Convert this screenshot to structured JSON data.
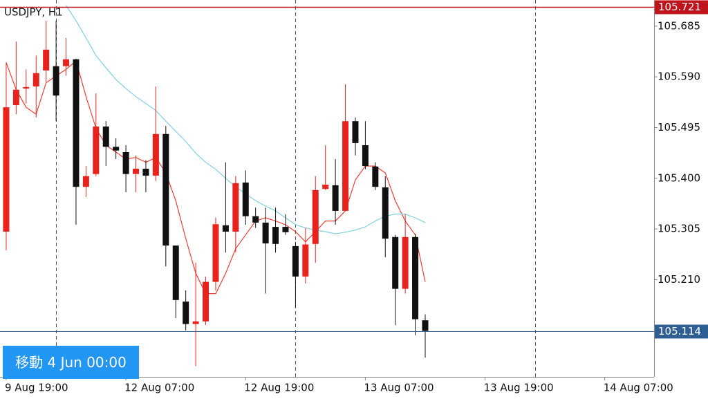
{
  "chart_data": {
    "type": "candlestick",
    "title": "USDJPY, H1",
    "open": [
      105.3,
      105.537,
      105.568,
      105.572,
      105.602,
      105.61,
      105.61,
      105.623,
      105.384,
      105.408,
      105.497,
      105.459,
      105.449,
      105.408,
      105.418,
      105.405,
      105.483,
      105.274,
      105.169,
      105.127,
      105.132,
      105.206,
      105.312,
      105.3,
      105.392,
      105.329,
      105.317,
      105.309,
      105.309,
      105.273,
      105.216,
      105.277,
      105.38,
      105.387,
      105.339,
      105.507,
      105.462,
      105.422,
      105.383,
      105.29,
      105.193,
      105.29,
      105.134
    ],
    "high": [
      105.617,
      105.656,
      105.604,
      105.63,
      105.695,
      105.695,
      105.663,
      105.624,
      105.423,
      105.559,
      105.507,
      105.475,
      105.462,
      105.443,
      105.434,
      105.572,
      105.498,
      105.274,
      105.19,
      105.242,
      105.216,
      105.326,
      105.43,
      105.404,
      105.415,
      105.345,
      105.345,
      105.345,
      105.333,
      105.281,
      105.307,
      105.404,
      105.462,
      105.436,
      105.576,
      105.514,
      105.507,
      105.43,
      105.404,
      105.294,
      105.333,
      105.296,
      105.145
    ],
    "low": [
      105.265,
      105.52,
      105.54,
      105.514,
      105.581,
      105.507,
      105.592,
      105.313,
      105.365,
      105.404,
      105.423,
      105.436,
      105.374,
      105.374,
      105.374,
      105.395,
      105.235,
      105.138,
      105.115,
      105.048,
      105.125,
      105.19,
      105.261,
      105.261,
      105.313,
      105.307,
      105.184,
      105.261,
      105.294,
      105.158,
      105.203,
      105.242,
      105.378,
      105.313,
      105.339,
      105.443,
      105.417,
      105.378,
      105.252,
      105.125,
      105.184,
      105.106,
      105.064
    ],
    "close": [
      105.533,
      105.566,
      105.571,
      105.597,
      105.641,
      105.555,
      105.623,
      105.384,
      105.404,
      105.497,
      105.459,
      105.452,
      105.408,
      105.418,
      105.405,
      105.483,
      105.274,
      105.172,
      105.127,
      105.132,
      105.206,
      105.314,
      105.3,
      105.391,
      105.329,
      105.317,
      105.278,
      105.277,
      105.299,
      105.216,
      105.276,
      105.378,
      105.388,
      105.339,
      105.507,
      105.466,
      105.423,
      105.384,
      105.287,
      105.193,
      105.29,
      105.136,
      105.114
    ],
    "up_color": "#e8231e",
    "down_color": "#111111",
    "lines": [
      {
        "color": "#f03c32",
        "values": [
          105.617,
          105.566,
          105.533,
          105.52,
          105.579,
          105.592,
          105.604,
          105.62,
          105.553,
          105.494,
          105.462,
          105.449,
          105.436,
          105.439,
          105.43,
          105.439,
          105.41,
          105.358,
          105.287,
          105.222,
          105.184,
          105.184,
          105.222,
          105.268,
          105.294,
          105.32,
          105.326,
          105.32,
          105.313,
          105.3,
          105.281,
          105.3,
          105.32,
          105.32,
          105.339,
          105.397,
          105.423,
          105.423,
          105.41,
          105.358,
          105.32,
          105.294,
          105.206
        ]
      },
      {
        "color": "#7ecfe0",
        "values": [
          null,
          null,
          null,
          null,
          null,
          null,
          105.724,
          105.695,
          105.663,
          105.63,
          105.607,
          105.585,
          105.568,
          105.553,
          105.54,
          105.527,
          105.507,
          105.488,
          105.469,
          105.447,
          105.43,
          105.417,
          105.4,
          105.384,
          105.371,
          105.358,
          105.348,
          105.339,
          105.326,
          105.313,
          105.307,
          105.303,
          105.3,
          105.296,
          105.299,
          105.303,
          105.309,
          105.32,
          105.329,
          105.333,
          105.333,
          105.326,
          105.317
        ]
      }
    ],
    "ylim": [
      105.028,
      105.734
    ],
    "yticks": [
      {
        "value": 105.21,
        "label": "105.210"
      },
      105.305,
      {
        "value": 105.4,
        "label": "105.400"
      },
      105.495,
      {
        "value": 105.59,
        "label": "105.590"
      },
      105.685
    ],
    "xlim": [
      -0.62,
      64.94
    ],
    "xticks": [
      {
        "value": 0,
        "label": "9 Aug 19:00"
      },
      {
        "value": 12,
        "label": "12 Aug 07:00"
      },
      {
        "value": 24,
        "label": "12 Aug 19:00"
      },
      {
        "value": 36,
        "label": "13 Aug 07:00"
      },
      {
        "value": 48,
        "label": "13 Aug 19:00"
      },
      {
        "value": 60,
        "label": "14 Aug 07:00"
      }
    ],
    "separators": [
      5,
      29,
      53
    ],
    "hlines": [
      {
        "value": 105.721,
        "color": "#c0141c"
      },
      {
        "value": 105.114,
        "color": "#2f5f92"
      }
    ]
  },
  "ui": {
    "goto_button": "移動 4 Jun 00:00"
  }
}
